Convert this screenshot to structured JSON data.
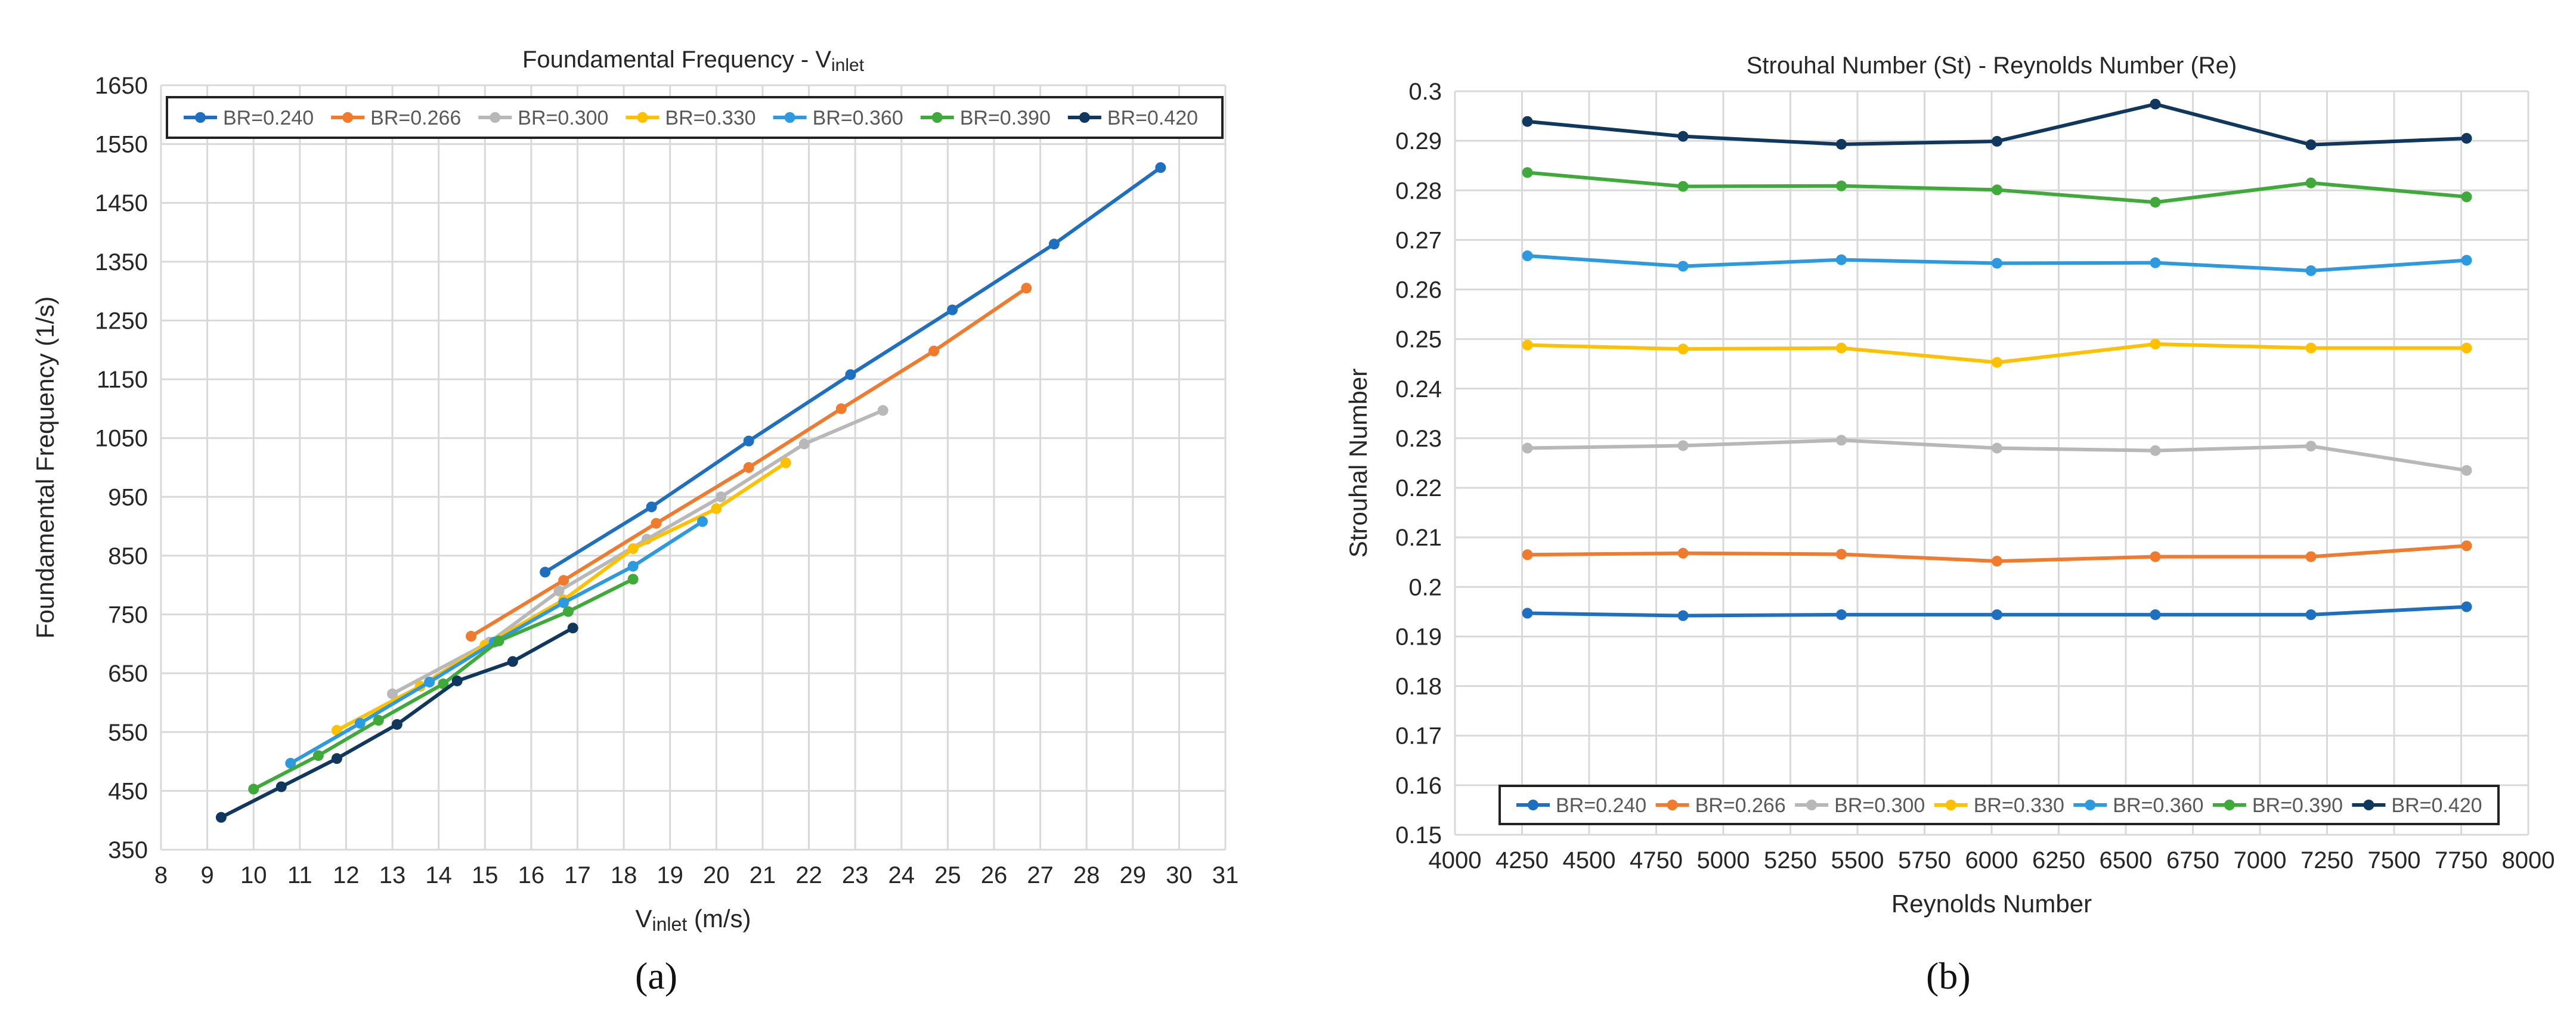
{
  "chart_data": [
    {
      "type": "line",
      "title": "Foundamental Frequency - V",
      "title_sub": "inlet",
      "xlabel": "V",
      "xlabel_sub": "inlet",
      "xlabel_unit": " (m/s)",
      "ylabel": "Foundamental Frequency (1/s)",
      "xlim": [
        8,
        31
      ],
      "ylim": [
        350,
        1650
      ],
      "xticks": [
        8,
        9,
        10,
        11,
        12,
        13,
        14,
        15,
        16,
        17,
        18,
        19,
        20,
        21,
        22,
        23,
        24,
        25,
        26,
        27,
        28,
        29,
        30,
        31
      ],
      "yticks": [
        350,
        450,
        550,
        650,
        750,
        850,
        950,
        1050,
        1150,
        1250,
        1350,
        1450,
        1550,
        1650
      ],
      "legend_position": "top",
      "panel_label": "(a)",
      "series": [
        {
          "name": "BR=0.240",
          "color": "#1f6fc1",
          "x": [
            16.3,
            18.6,
            20.7,
            22.9,
            25.1,
            27.3,
            29.6
          ],
          "y": [
            822,
            933,
            1045,
            1158,
            1268,
            1380,
            1510
          ]
        },
        {
          "name": "BR=0.266",
          "color": "#f07a2e",
          "x": [
            14.7,
            16.7,
            18.7,
            20.7,
            22.7,
            24.7,
            26.7
          ],
          "y": [
            713,
            808,
            905,
            1000,
            1100,
            1198,
            1305
          ]
        },
        {
          "name": "BR=0.300",
          "color": "#b8b8b8",
          "x": [
            13.0,
            15.1,
            16.6,
            18.5,
            20.1,
            21.9,
            23.6
          ],
          "y": [
            615,
            703,
            790,
            878,
            950,
            1040,
            1097
          ]
        },
        {
          "name": "BR=0.330",
          "color": "#ffc000",
          "x": [
            11.8,
            13.6,
            15.0,
            16.7,
            18.2,
            20.0,
            21.5
          ],
          "y": [
            553,
            628,
            698,
            775,
            862,
            930,
            1008
          ]
        },
        {
          "name": "BR=0.360",
          "color": "#2d9ae0",
          "x": [
            10.8,
            12.3,
            13.8,
            15.2,
            16.7,
            18.2,
            19.7
          ],
          "y": [
            497,
            565,
            635,
            703,
            770,
            832,
            908
          ]
        },
        {
          "name": "BR=0.390",
          "color": "#3faa3a",
          "x": [
            10.0,
            11.4,
            12.7,
            14.1,
            15.3,
            16.8,
            18.2
          ],
          "y": [
            453,
            510,
            570,
            632,
            705,
            755,
            810
          ]
        },
        {
          "name": "BR=0.420",
          "color": "#10375e",
          "x": [
            9.3,
            10.6,
            11.8,
            13.1,
            14.4,
            15.6,
            16.9
          ],
          "y": [
            405,
            457,
            505,
            563,
            637,
            670,
            727
          ]
        }
      ]
    },
    {
      "type": "line",
      "title": "Strouhal Number (St) - Reynolds Number (Re)",
      "xlabel": "Reynolds Number",
      "ylabel": "Strouhal Number",
      "xlim": [
        4000,
        8000
      ],
      "ylim": [
        0.15,
        0.3
      ],
      "xticks": [
        4000,
        4250,
        4500,
        4750,
        5000,
        5250,
        5500,
        5750,
        6000,
        6250,
        6500,
        6750,
        7000,
        7250,
        7500,
        7750,
        8000
      ],
      "yticks": [
        "0.15",
        "0.16",
        "0.17",
        "0.18",
        "0.19",
        "0.2",
        "0.21",
        "0.22",
        "0.23",
        "0.24",
        "0.25",
        "0.26",
        "0.27",
        "0.28",
        "0.29",
        "0.3"
      ],
      "legend_position": "bottom",
      "panel_label": "(b)",
      "x": [
        4270,
        4850,
        5440,
        6020,
        6610,
        7190,
        7770
      ],
      "series": [
        {
          "name": "BR=0.240",
          "color": "#1f6fc1",
          "values": [
            0.1947,
            0.1942,
            0.1944,
            0.1944,
            0.1944,
            0.1944,
            0.196
          ]
        },
        {
          "name": "BR=0.266",
          "color": "#f07a2e",
          "values": [
            0.2065,
            0.2068,
            0.2066,
            0.2052,
            0.2061,
            0.2061,
            0.2083
          ]
        },
        {
          "name": "BR=0.300",
          "color": "#b8b8b8",
          "values": [
            0.228,
            0.2285,
            0.2296,
            0.228,
            0.2275,
            0.2284,
            0.2235
          ]
        },
        {
          "name": "BR=0.330",
          "color": "#ffc000",
          "values": [
            0.2488,
            0.248,
            0.2482,
            0.2453,
            0.249,
            0.2482,
            0.2482
          ]
        },
        {
          "name": "BR=0.360",
          "color": "#2d9ae0",
          "values": [
            0.2668,
            0.2647,
            0.266,
            0.2653,
            0.2654,
            0.2638,
            0.2659
          ]
        },
        {
          "name": "BR=0.390",
          "color": "#3faa3a",
          "values": [
            0.2836,
            0.2808,
            0.2809,
            0.2801,
            0.2776,
            0.2815,
            0.2787
          ]
        },
        {
          "name": "BR=0.420",
          "color": "#10375e",
          "values": [
            0.2939,
            0.2909,
            0.2893,
            0.2899,
            0.2974,
            0.2892,
            0.2905
          ]
        }
      ]
    }
  ]
}
